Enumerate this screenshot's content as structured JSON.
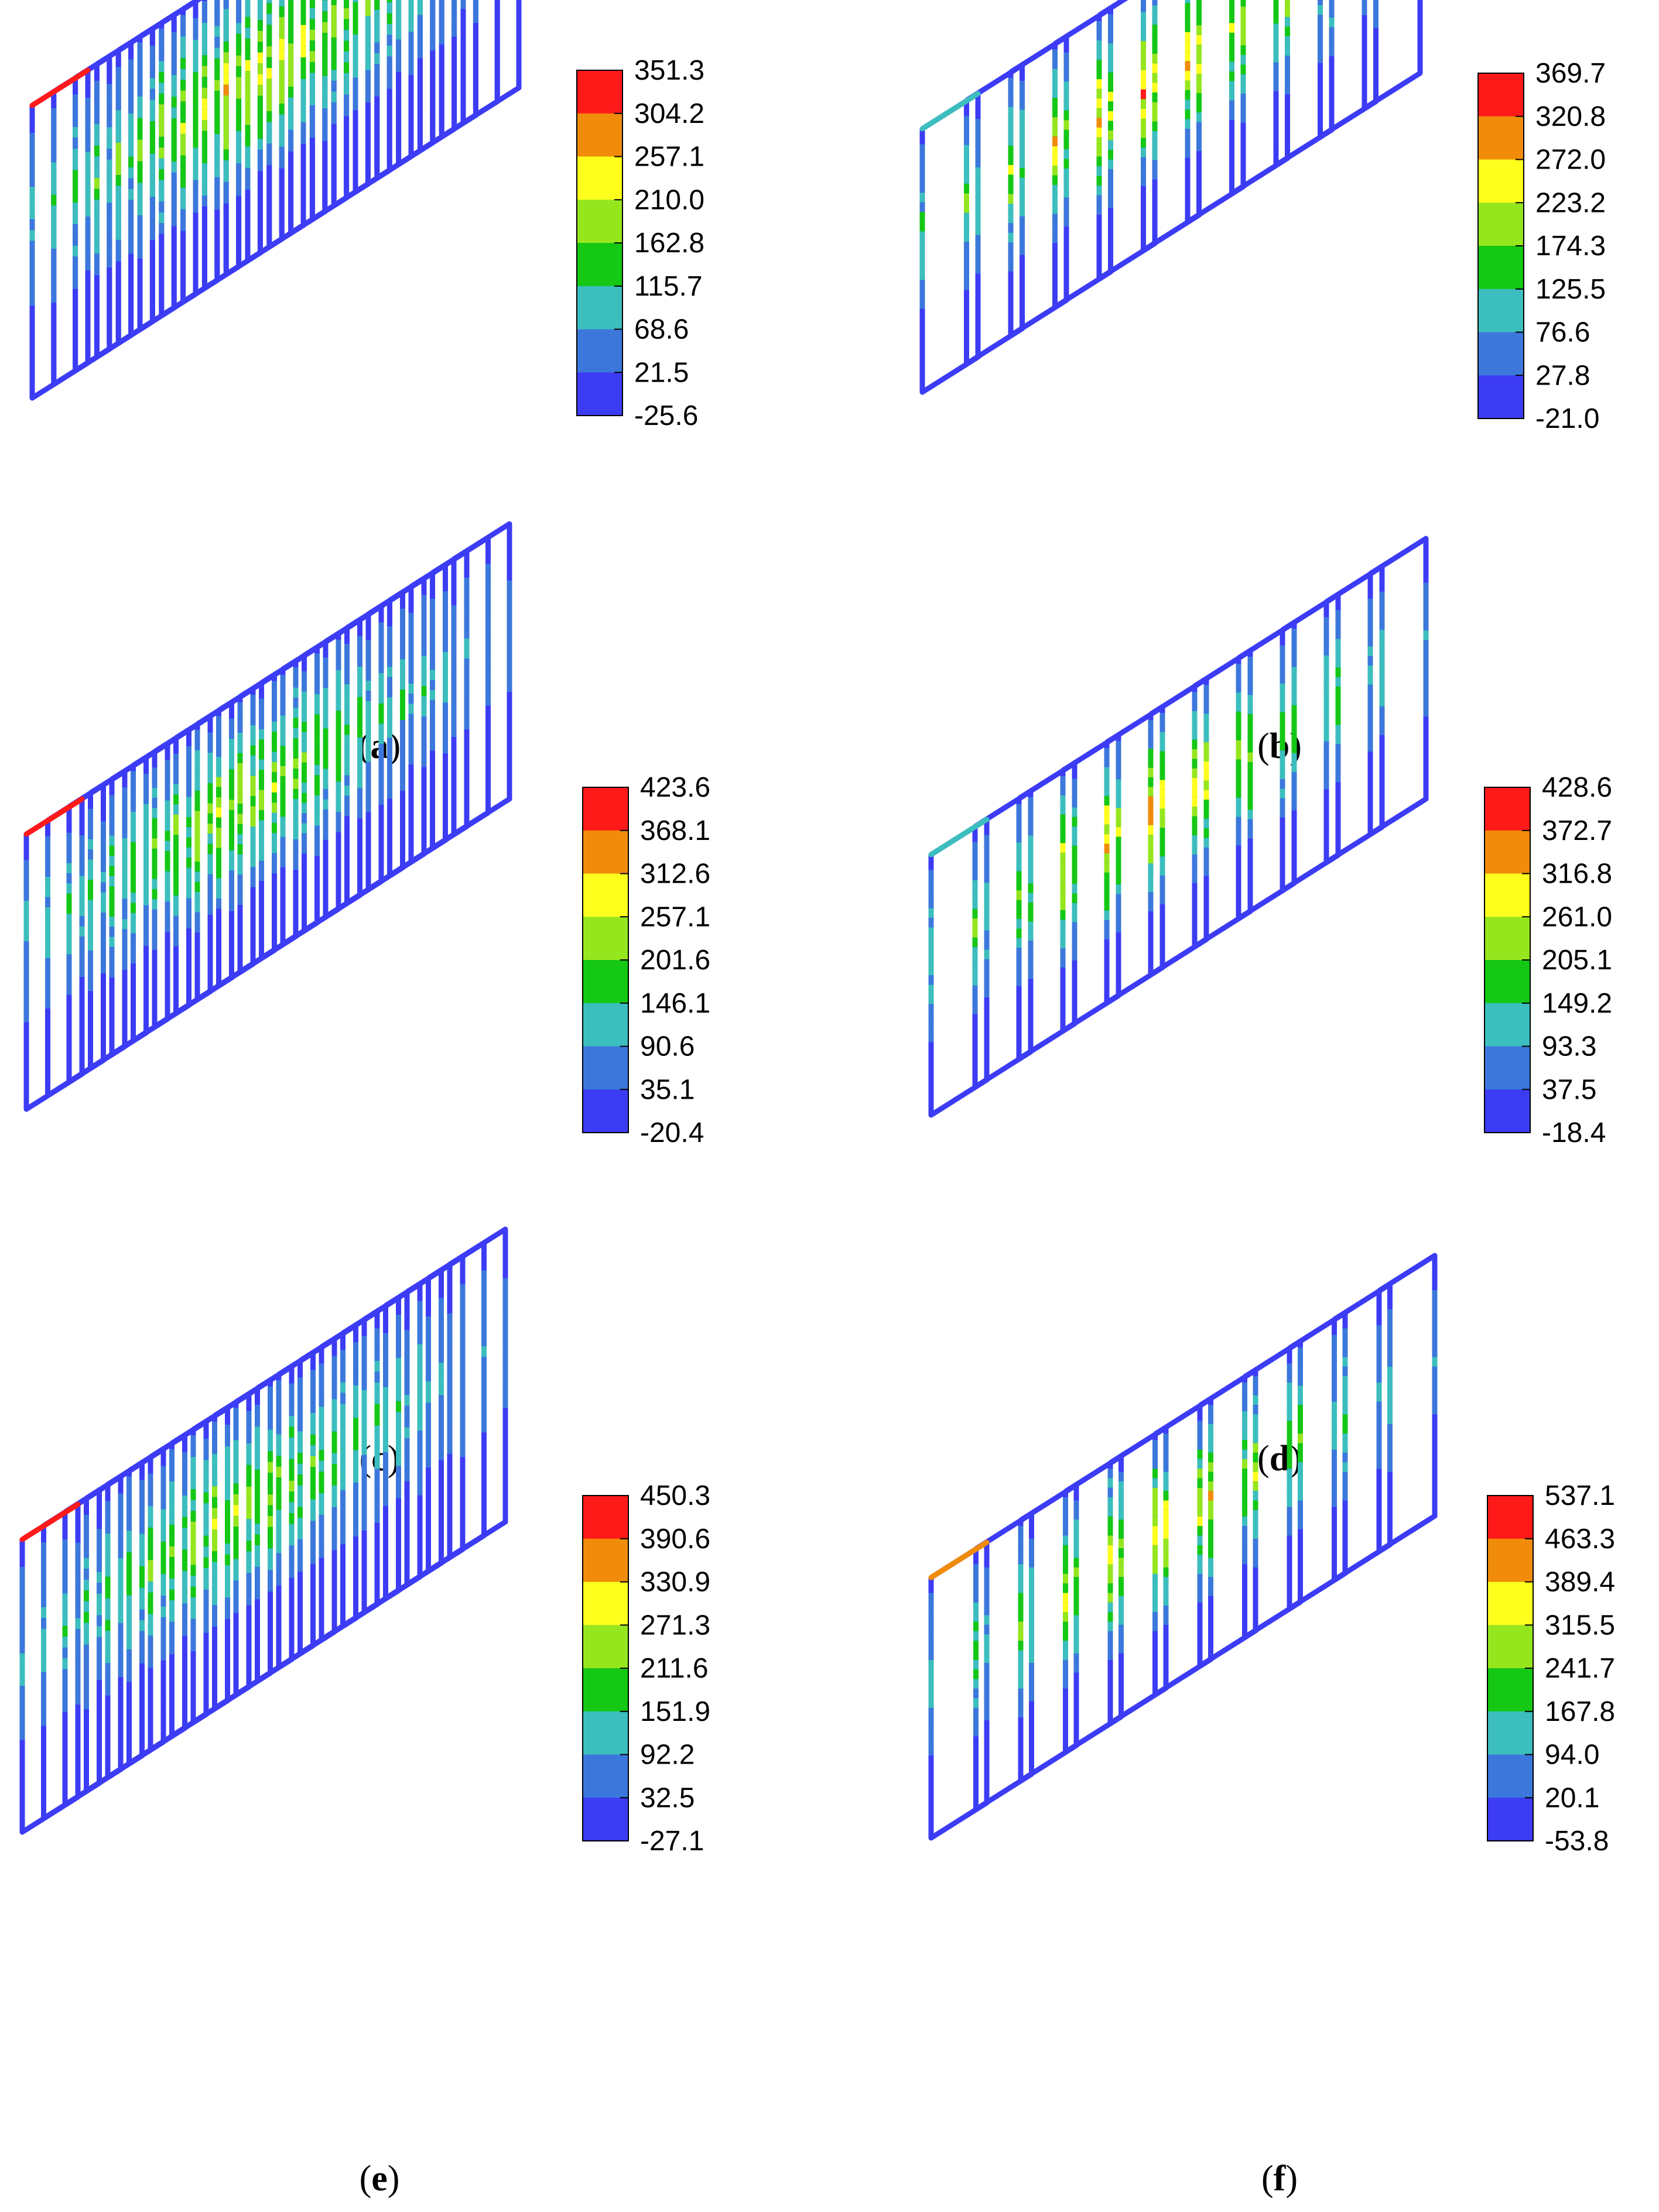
{
  "panels": [
    {
      "id": "a",
      "caption": {
        "open": "(",
        "letter": "a",
        "close": ")"
      },
      "legend_labels": [
        "351.3",
        "304.2",
        "257.1",
        "210.0",
        "162.8",
        "115.7",
        "68.6",
        "21.5",
        "-25.6"
      ]
    },
    {
      "id": "b",
      "caption": {
        "open": "(",
        "letter": "b",
        "close": ")"
      },
      "legend_labels": [
        "369.7",
        "320.8",
        "272.0",
        "223.2",
        "174.3",
        "125.5",
        "76.6",
        "27.8",
        "-21.0"
      ]
    },
    {
      "id": "c",
      "caption": {
        "open": "(",
        "letter": "c",
        "close": ")"
      },
      "legend_labels": [
        "423.6",
        "368.1",
        "312.6",
        "257.1",
        "201.6",
        "146.1",
        "90.6",
        "35.1",
        "-20.4"
      ]
    },
    {
      "id": "d",
      "caption": {
        "open": "(",
        "letter": "d",
        "close": ")"
      },
      "legend_labels": [
        "428.6",
        "372.7",
        "316.8",
        "261.0",
        "205.1",
        "149.2",
        "93.3",
        "37.5",
        "-18.4"
      ]
    },
    {
      "id": "e",
      "caption": {
        "open": "(",
        "letter": "e",
        "close": ")"
      },
      "legend_labels": [
        "450.3",
        "390.6",
        "330.9",
        "271.3",
        "211.6",
        "151.9",
        "92.2",
        "32.5",
        "-27.1"
      ]
    },
    {
      "id": "f",
      "caption": {
        "open": "(",
        "letter": "f",
        "close": ")"
      },
      "legend_labels": [
        "537.1",
        "463.3",
        "389.4",
        "315.5",
        "241.7",
        "167.8",
        "94.0",
        "20.1",
        "-53.8"
      ]
    }
  ],
  "colormap": [
    "#ff1a1a",
    "#f08c0a",
    "#ffff1e",
    "#96e61e",
    "#14c814",
    "#3cbebe",
    "#3c78dc",
    "#3c3cf5"
  ]
}
